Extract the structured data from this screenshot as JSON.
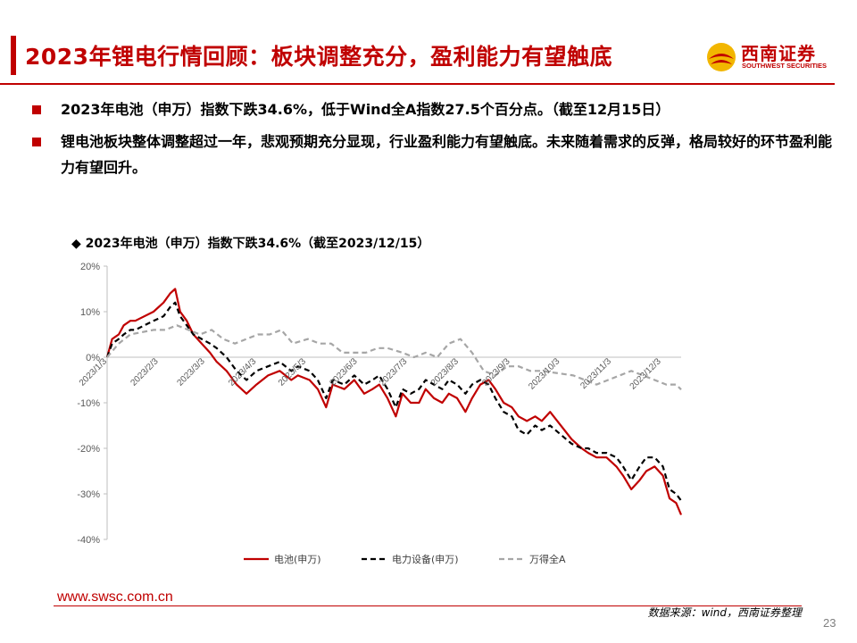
{
  "header": {
    "title": "2023年锂电行情回顾：板块调整充分，盈利能力有望触底",
    "logo_name": "西南证券",
    "logo_sub": "SOUTHWEST SECURITIES",
    "accent_color": "#c00000"
  },
  "bullets": [
    "2023年电池（申万）指数下跌34.6%，低于Wind全A指数27.5个百分点。（截至12月15日）",
    "锂电池板块整体调整超过一年，悲观预期充分显现，行业盈利能力有望触底。未来随着需求的反弹，格局较好的环节盈利能力有望回升。"
  ],
  "chart_title": "◆ 2023年电池（申万）指数下跌34.6%（截至2023/12/15）",
  "chart_data": {
    "type": "line",
    "title": "2023年电池（申万）指数下跌34.6%（截至2023/12/15）",
    "x_tick_labels": [
      "2023/1/3",
      "2023/2/3",
      "2023/3/3",
      "2023/4/3",
      "2023/5/3",
      "2023/6/3",
      "2023/7/3",
      "2023/8/3",
      "2023/9/3",
      "2023/10/3",
      "2023/11/3",
      "2023/12/3"
    ],
    "y_tick_labels": [
      "20%",
      "10%",
      "0%",
      "-10%",
      "-20%",
      "-30%",
      "-40%"
    ],
    "ylim": [
      -40,
      20
    ],
    "x_range": [
      "2023-01-03",
      "2023-12-15"
    ],
    "grid": false,
    "legend_position": "bottom",
    "series": [
      {
        "name": "电池(申万)",
        "color": "#c00000",
        "style": "solid",
        "points": [
          [
            "2023-01-03",
            0
          ],
          [
            "2023-01-06",
            4
          ],
          [
            "2023-01-10",
            5
          ],
          [
            "2023-01-13",
            7
          ],
          [
            "2023-01-17",
            8
          ],
          [
            "2023-01-20",
            8
          ],
          [
            "2023-01-31",
            10
          ],
          [
            "2023-02-06",
            12
          ],
          [
            "2023-02-10",
            14
          ],
          [
            "2023-02-13",
            15
          ],
          [
            "2023-02-16",
            10
          ],
          [
            "2023-02-20",
            8
          ],
          [
            "2023-02-24",
            5
          ],
          [
            "2023-03-01",
            3
          ],
          [
            "2023-03-06",
            1
          ],
          [
            "2023-03-10",
            -1
          ],
          [
            "2023-03-16",
            -3
          ],
          [
            "2023-03-22",
            -6
          ],
          [
            "2023-03-28",
            -8
          ],
          [
            "2023-04-03",
            -6
          ],
          [
            "2023-04-10",
            -4
          ],
          [
            "2023-04-17",
            -3
          ],
          [
            "2023-04-24",
            -5
          ],
          [
            "2023-04-28",
            -4
          ],
          [
            "2023-05-05",
            -5
          ],
          [
            "2023-05-10",
            -7
          ],
          [
            "2023-05-15",
            -11
          ],
          [
            "2023-05-19",
            -6
          ],
          [
            "2023-05-26",
            -7
          ],
          [
            "2023-06-01",
            -5
          ],
          [
            "2023-06-07",
            -8
          ],
          [
            "2023-06-12",
            -7
          ],
          [
            "2023-06-16",
            -6
          ],
          [
            "2023-06-21",
            -9
          ],
          [
            "2023-06-26",
            -13
          ],
          [
            "2023-06-30",
            -8
          ],
          [
            "2023-07-05",
            -10
          ],
          [
            "2023-07-10",
            -10
          ],
          [
            "2023-07-14",
            -7
          ],
          [
            "2023-07-19",
            -9
          ],
          [
            "2023-07-24",
            -10
          ],
          [
            "2023-07-28",
            -8
          ],
          [
            "2023-08-02",
            -9
          ],
          [
            "2023-08-07",
            -12
          ],
          [
            "2023-08-11",
            -9
          ],
          [
            "2023-08-16",
            -6
          ],
          [
            "2023-08-21",
            -5
          ],
          [
            "2023-08-25",
            -7
          ],
          [
            "2023-08-30",
            -10
          ],
          [
            "2023-09-04",
            -11
          ],
          [
            "2023-09-08",
            -13
          ],
          [
            "2023-09-13",
            -14
          ],
          [
            "2023-09-18",
            -13
          ],
          [
            "2023-09-22",
            -14
          ],
          [
            "2023-09-27",
            -12
          ],
          [
            "2023-10-10",
            -18
          ],
          [
            "2023-10-16",
            -20
          ],
          [
            "2023-10-20",
            -21
          ],
          [
            "2023-10-25",
            -22
          ],
          [
            "2023-10-31",
            -22
          ],
          [
            "2023-11-06",
            -24
          ],
          [
            "2023-11-10",
            -26
          ],
          [
            "2023-11-15",
            -29
          ],
          [
            "2023-11-20",
            -27
          ],
          [
            "2023-11-24",
            -25
          ],
          [
            "2023-11-29",
            -24
          ],
          [
            "2023-12-04",
            -26
          ],
          [
            "2023-12-08",
            -31
          ],
          [
            "2023-12-12",
            -32
          ],
          [
            "2023-12-15",
            -34.6
          ]
        ]
      },
      {
        "name": "电力设备(申万)",
        "color": "#000000",
        "style": "dashed",
        "points": [
          [
            "2023-01-03",
            0
          ],
          [
            "2023-01-06",
            3
          ],
          [
            "2023-01-10",
            4
          ],
          [
            "2023-01-13",
            5
          ],
          [
            "2023-01-17",
            6
          ],
          [
            "2023-01-20",
            6
          ],
          [
            "2023-01-31",
            8
          ],
          [
            "2023-02-06",
            9
          ],
          [
            "2023-02-10",
            11
          ],
          [
            "2023-02-13",
            12
          ],
          [
            "2023-02-16",
            9
          ],
          [
            "2023-02-20",
            7
          ],
          [
            "2023-02-24",
            5
          ],
          [
            "2023-03-01",
            4
          ],
          [
            "2023-03-06",
            3
          ],
          [
            "2023-03-10",
            2
          ],
          [
            "2023-03-16",
            0
          ],
          [
            "2023-03-22",
            -3
          ],
          [
            "2023-03-28",
            -5
          ],
          [
            "2023-04-03",
            -3
          ],
          [
            "2023-04-10",
            -2
          ],
          [
            "2023-04-17",
            -1
          ],
          [
            "2023-04-24",
            -3
          ],
          [
            "2023-04-28",
            -2
          ],
          [
            "2023-05-05",
            -3
          ],
          [
            "2023-05-10",
            -5
          ],
          [
            "2023-05-15",
            -9
          ],
          [
            "2023-05-19",
            -5
          ],
          [
            "2023-05-26",
            -6
          ],
          [
            "2023-06-01",
            -4
          ],
          [
            "2023-06-07",
            -6
          ],
          [
            "2023-06-12",
            -5
          ],
          [
            "2023-06-16",
            -4
          ],
          [
            "2023-06-21",
            -7
          ],
          [
            "2023-06-26",
            -11
          ],
          [
            "2023-06-30",
            -7
          ],
          [
            "2023-07-05",
            -8
          ],
          [
            "2023-07-10",
            -7
          ],
          [
            "2023-07-14",
            -5
          ],
          [
            "2023-07-19",
            -6
          ],
          [
            "2023-07-24",
            -7
          ],
          [
            "2023-07-28",
            -5
          ],
          [
            "2023-08-02",
            -6
          ],
          [
            "2023-08-07",
            -8
          ],
          [
            "2023-08-11",
            -6
          ],
          [
            "2023-08-16",
            -5
          ],
          [
            "2023-08-21",
            -6
          ],
          [
            "2023-08-25",
            -9
          ],
          [
            "2023-08-30",
            -12
          ],
          [
            "2023-09-04",
            -13
          ],
          [
            "2023-09-08",
            -16
          ],
          [
            "2023-09-13",
            -17
          ],
          [
            "2023-09-18",
            -15
          ],
          [
            "2023-09-22",
            -16
          ],
          [
            "2023-09-27",
            -15
          ],
          [
            "2023-10-10",
            -19
          ],
          [
            "2023-10-16",
            -20
          ],
          [
            "2023-10-20",
            -20
          ],
          [
            "2023-10-25",
            -21
          ],
          [
            "2023-10-31",
            -21
          ],
          [
            "2023-11-06",
            -22
          ],
          [
            "2023-11-10",
            -24
          ],
          [
            "2023-11-15",
            -27
          ],
          [
            "2023-11-20",
            -24
          ],
          [
            "2023-11-24",
            -22
          ],
          [
            "2023-11-29",
            -22
          ],
          [
            "2023-12-04",
            -24
          ],
          [
            "2023-12-08",
            -29
          ],
          [
            "2023-12-12",
            -30
          ],
          [
            "2023-12-15",
            -31.5
          ]
        ]
      },
      {
        "name": "万得全A",
        "color": "#a6a6a6",
        "style": "dashed",
        "points": [
          [
            "2023-01-03",
            0
          ],
          [
            "2023-01-10",
            3
          ],
          [
            "2023-01-17",
            5
          ],
          [
            "2023-01-31",
            6
          ],
          [
            "2023-02-07",
            6
          ],
          [
            "2023-02-14",
            7
          ],
          [
            "2023-02-21",
            6
          ],
          [
            "2023-02-28",
            5
          ],
          [
            "2023-03-07",
            6
          ],
          [
            "2023-03-14",
            4
          ],
          [
            "2023-03-21",
            3
          ],
          [
            "2023-03-28",
            4
          ],
          [
            "2023-04-04",
            5
          ],
          [
            "2023-04-11",
            5
          ],
          [
            "2023-04-18",
            6
          ],
          [
            "2023-04-25",
            3
          ],
          [
            "2023-05-04",
            4
          ],
          [
            "2023-05-11",
            3
          ],
          [
            "2023-05-18",
            3
          ],
          [
            "2023-05-25",
            1
          ],
          [
            "2023-06-01",
            1
          ],
          [
            "2023-06-08",
            1
          ],
          [
            "2023-06-15",
            2
          ],
          [
            "2023-06-21",
            2
          ],
          [
            "2023-06-30",
            1
          ],
          [
            "2023-07-07",
            0
          ],
          [
            "2023-07-14",
            1
          ],
          [
            "2023-07-21",
            0
          ],
          [
            "2023-07-28",
            3
          ],
          [
            "2023-08-04",
            4
          ],
          [
            "2023-08-11",
            1
          ],
          [
            "2023-08-18",
            -3
          ],
          [
            "2023-08-25",
            -4
          ],
          [
            "2023-09-01",
            -2
          ],
          [
            "2023-09-08",
            -2
          ],
          [
            "2023-09-15",
            -3
          ],
          [
            "2023-09-22",
            -3
          ],
          [
            "2023-10-11",
            -4
          ],
          [
            "2023-10-18",
            -5
          ],
          [
            "2023-10-25",
            -6
          ],
          [
            "2023-11-01",
            -5
          ],
          [
            "2023-11-08",
            -4
          ],
          [
            "2023-11-15",
            -3
          ],
          [
            "2023-11-22",
            -4
          ],
          [
            "2023-11-29",
            -5
          ],
          [
            "2023-12-06",
            -6
          ],
          [
            "2023-12-12",
            -6
          ],
          [
            "2023-12-15",
            -7.1
          ]
        ]
      }
    ]
  },
  "footer": {
    "url": "www.swsc.com.cn",
    "source": "数据来源：wind，西南证券整理",
    "page_number": "23"
  }
}
